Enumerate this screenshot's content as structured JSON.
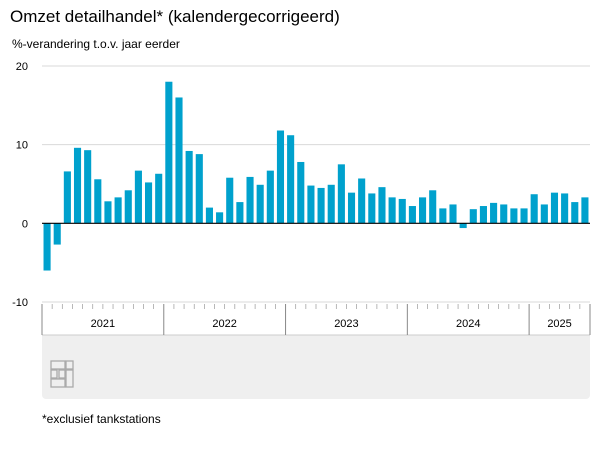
{
  "title": "Omzet detailhandel* (kalendergecorrigeerd)",
  "subtitle": "%-verandering t.o.v. jaar eerder",
  "footnote": "*exclusief tankstations",
  "logo_text": "cbs",
  "colors": {
    "bar": "#00a1cd",
    "grid": "#d9d9d9",
    "axis": "#000000",
    "timeline_bg": "#efefef",
    "tick": "#999999"
  },
  "chart_data": {
    "type": "bar",
    "title": "Omzet detailhandel* (kalendergecorrigeerd)",
    "ylabel": "%-verandering t.o.v. jaar eerder",
    "ylim": [
      -10,
      20
    ],
    "yticks": [
      -10,
      0,
      10,
      20
    ],
    "grid": true,
    "frequency": "monthly",
    "start": "2021-01",
    "year_labels": [
      "2021",
      "2022",
      "2023",
      "2024",
      "2025"
    ],
    "values": [
      -6.0,
      -2.7,
      6.6,
      9.6,
      9.3,
      5.6,
      2.8,
      3.3,
      4.2,
      6.7,
      5.2,
      6.3,
      18.0,
      16.0,
      9.2,
      8.8,
      2.0,
      1.4,
      5.8,
      2.7,
      5.9,
      4.9,
      6.7,
      11.8,
      11.2,
      7.8,
      4.8,
      4.5,
      4.9,
      7.5,
      3.9,
      5.7,
      3.8,
      4.6,
      3.3,
      3.1,
      2.2,
      3.3,
      4.2,
      1.9,
      2.4,
      -0.6,
      1.8,
      2.2,
      2.6,
      2.4,
      1.9,
      1.9,
      3.7,
      2.4,
      3.9,
      3.8,
      2.7,
      3.3
    ]
  }
}
